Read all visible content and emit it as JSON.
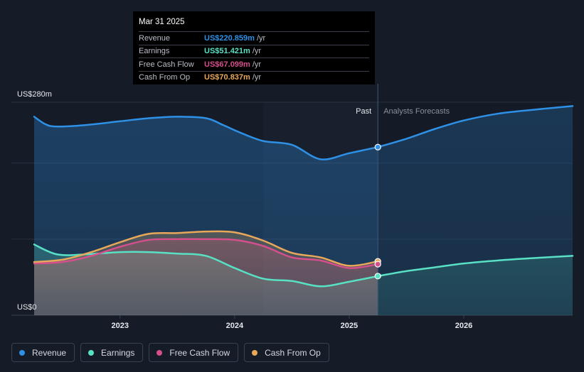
{
  "chart_data": {
    "type": "area",
    "y_axis": {
      "top_label": "US$280m",
      "bottom_label": "US$0",
      "ylim": [
        0,
        280
      ],
      "gridlines": [
        0,
        100,
        200,
        280
      ]
    },
    "x_axis": {
      "range": [
        2022.25,
        2026.95
      ],
      "ticks": [
        "2023",
        "2024",
        "2025",
        "2026"
      ],
      "tick_values": [
        2023,
        2024,
        2025,
        2026
      ]
    },
    "divider_label_past": "Past",
    "divider_label_forecast": "Analysts Forecasts",
    "divider_x": 2025.25,
    "shaded_band_start": 2024.25,
    "series": [
      {
        "name": "Revenue",
        "color": "#2e91e5",
        "points": [
          [
            2022.25,
            261
          ],
          [
            2022.35,
            251
          ],
          [
            2022.45,
            248
          ],
          [
            2022.7,
            250
          ],
          [
            2023.0,
            255
          ],
          [
            2023.25,
            259
          ],
          [
            2023.5,
            261
          ],
          [
            2023.75,
            259
          ],
          [
            2023.9,
            250
          ],
          [
            2024.05,
            240
          ],
          [
            2024.25,
            229
          ],
          [
            2024.5,
            224
          ],
          [
            2024.75,
            205
          ],
          [
            2025.0,
            213
          ],
          [
            2025.25,
            221
          ]
        ],
        "forecast": [
          [
            2025.25,
            221
          ],
          [
            2025.5,
            232
          ],
          [
            2025.75,
            245
          ],
          [
            2026.0,
            256
          ],
          [
            2026.3,
            265
          ],
          [
            2026.6,
            270
          ],
          [
            2026.95,
            275
          ]
        ]
      },
      {
        "name": "Earnings",
        "color": "#58e1c4",
        "points": [
          [
            2022.25,
            93
          ],
          [
            2022.45,
            80
          ],
          [
            2022.7,
            80
          ],
          [
            2023.0,
            83
          ],
          [
            2023.25,
            83
          ],
          [
            2023.5,
            81
          ],
          [
            2023.75,
            78
          ],
          [
            2024.0,
            62
          ],
          [
            2024.25,
            48
          ],
          [
            2024.5,
            45
          ],
          [
            2024.75,
            38
          ],
          [
            2025.0,
            44
          ],
          [
            2025.25,
            51.4
          ]
        ],
        "forecast": [
          [
            2025.25,
            51.4
          ],
          [
            2025.5,
            58
          ],
          [
            2025.75,
            63
          ],
          [
            2026.0,
            68
          ],
          [
            2026.3,
            72
          ],
          [
            2026.6,
            75
          ],
          [
            2026.95,
            78
          ]
        ]
      },
      {
        "name": "Free Cash Flow",
        "color": "#d44f8b",
        "points": [
          [
            2022.25,
            68
          ],
          [
            2022.5,
            70
          ],
          [
            2022.75,
            78
          ],
          [
            2023.0,
            90
          ],
          [
            2023.25,
            99
          ],
          [
            2023.5,
            100
          ],
          [
            2023.75,
            100
          ],
          [
            2024.0,
            99
          ],
          [
            2024.25,
            91
          ],
          [
            2024.5,
            76
          ],
          [
            2024.75,
            72
          ],
          [
            2025.0,
            62
          ],
          [
            2025.25,
            67.1
          ]
        ]
      },
      {
        "name": "Cash From Op",
        "color": "#e8a85a",
        "points": [
          [
            2022.25,
            70
          ],
          [
            2022.5,
            73
          ],
          [
            2022.75,
            83
          ],
          [
            2023.0,
            96
          ],
          [
            2023.25,
            107
          ],
          [
            2023.5,
            108
          ],
          [
            2023.75,
            110
          ],
          [
            2024.0,
            109
          ],
          [
            2024.25,
            98
          ],
          [
            2024.5,
            82
          ],
          [
            2024.75,
            76
          ],
          [
            2025.0,
            65
          ],
          [
            2025.25,
            70.8
          ]
        ]
      }
    ]
  },
  "tooltip": {
    "date": "Mar 31 2025",
    "rows": [
      {
        "label": "Revenue",
        "value": "US$220.859m",
        "unit": "/yr",
        "color": "#2e91e5"
      },
      {
        "label": "Earnings",
        "value": "US$51.421m",
        "unit": "/yr",
        "color": "#58e1c4"
      },
      {
        "label": "Free Cash Flow",
        "value": "US$67.099m",
        "unit": "/yr",
        "color": "#d44f8b"
      },
      {
        "label": "Cash From Op",
        "value": "US$70.837m",
        "unit": "/yr",
        "color": "#e8a85a"
      }
    ]
  },
  "legend": [
    {
      "label": "Revenue",
      "color": "#2e91e5"
    },
    {
      "label": "Earnings",
      "color": "#58e1c4"
    },
    {
      "label": "Free Cash Flow",
      "color": "#d44f8b"
    },
    {
      "label": "Cash From Op",
      "color": "#e8a85a"
    }
  ]
}
